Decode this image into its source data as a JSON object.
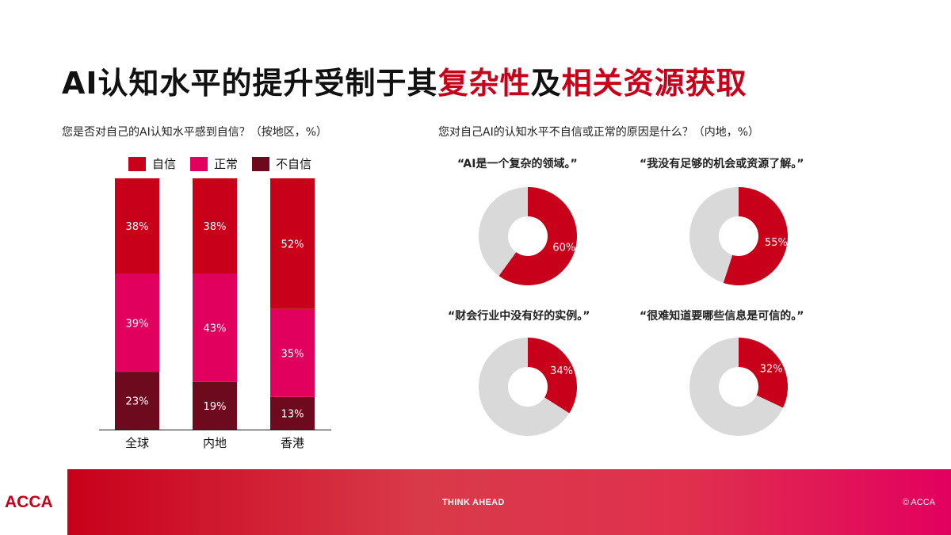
{
  "title": {
    "part1": "AI认知水平的提升受制于其",
    "part2": "复杂性",
    "part3": "及",
    "part4": "相关资源获取"
  },
  "left_subtitle": "您是否对自己的AI认知水平感到自信？（按地区，%）",
  "right_subtitle": "您对自己AI的认知水平不自信或正常的原因是什么？（内地，%）",
  "legend": [
    {
      "label": "自信",
      "color": "#c8001a"
    },
    {
      "label": "正常",
      "color": "#e2005f"
    },
    {
      "label": "不自信",
      "color": "#6e0a1e"
    }
  ],
  "colors": {
    "confident": "#c8001a",
    "normal": "#e2005f",
    "not_confident": "#6e0a1e",
    "donut_fill": "#c8001a",
    "donut_rest": "#d9d9d9"
  },
  "chart_data": [
    {
      "type": "bar",
      "stacked": true,
      "categories": [
        "全球",
        "内地",
        "香港"
      ],
      "series": [
        {
          "name": "不自信",
          "values": [
            23,
            19,
            13
          ]
        },
        {
          "name": "正常",
          "values": [
            39,
            43,
            35
          ]
        },
        {
          "name": "自信",
          "values": [
            38,
            38,
            52
          ]
        }
      ],
      "value_labels": {
        "自信": [
          "38%",
          "38%",
          "52%"
        ],
        "正常": [
          "39%",
          "43%",
          "35%"
        ],
        "不自信": [
          "23%",
          "19%",
          "13%"
        ]
      },
      "ylim": [
        0,
        100
      ]
    },
    {
      "type": "pie",
      "donuts": [
        {
          "quote": "“AI是一个复杂的领域。”",
          "value": 60,
          "label": "60%"
        },
        {
          "quote": "“我没有足够的机会或资源了解。”",
          "value": 55,
          "label": "55%"
        },
        {
          "quote": "“财会行业中没有好的实例。”",
          "value": 34,
          "label": "34%"
        },
        {
          "quote": "“很难知道要哪些信息是可信的。”",
          "value": 32,
          "label": "32%"
        }
      ]
    }
  ],
  "footer": {
    "logo": "ACCA",
    "tagline": "THINK AHEAD",
    "copyright": "© ACCA"
  }
}
